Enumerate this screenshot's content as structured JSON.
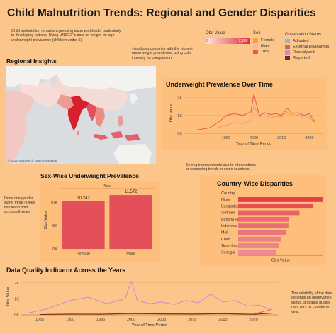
{
  "dashboard": {
    "title": "Child Malnutrition Trends: Regional and Gender Disparities",
    "intro": "Child malnutrition remains a pressing issue worldwide, particularly in developing nations. Using UNICEF's data on weight-for-age underweight prevalence (children under 5)",
    "map_note": "visualizing countries with the highest underweight prevalence, using color intensity for comparison.",
    "trend_note": "Seeing improvements due to interventions or worsening trends in some countries",
    "gender_note": "Does one gender suffer more? Does this trend hold across all years",
    "quality_note": "The reliability of the data depends on observation status, and data quality may vary by country or year."
  },
  "legends": {
    "obs_value": {
      "title": "Obs Value",
      "min": "0",
      "max": "2,285",
      "gradient": [
        "#fde7e1",
        "#e03040"
      ]
    },
    "sex": {
      "title": "Sex",
      "items": [
        {
          "label": "Female",
          "color": "#f2a23a"
        },
        {
          "label": "Male",
          "color": "#f7b3a6"
        },
        {
          "label": "Total",
          "color": "#e45a52"
        }
      ]
    },
    "observation_status": {
      "title": "Observation Status",
      "items": [
        {
          "label": "Adjusted",
          "color": "#8fb7d9"
        },
        {
          "label": "External Reanalysis",
          "color": "#d8683a"
        },
        {
          "label": "Reanalysed",
          "color": "#c78bd4"
        },
        {
          "label": "Reported",
          "color": "#7a2a10"
        }
      ]
    }
  },
  "regional": {
    "title": "Regional Insights",
    "attribution": "© 2025 Mapbox © OpenStreetMap"
  },
  "chart_data": [
    {
      "id": "underweight_over_time",
      "type": "line",
      "title": "Underweight Prevalence Over Time",
      "xlabel": "Year of Time Period",
      "ylabel": "Obs Value",
      "xlim": [
        1975,
        2025
      ],
      "ylim": [
        0,
        2300
      ],
      "xticks": [
        1990,
        2000,
        2010,
        2020
      ],
      "yticks": [
        0,
        1000,
        2000
      ],
      "ytick_labels": [
        "0K",
        "1K",
        "2K"
      ],
      "series": [
        {
          "name": "Female",
          "color": "#f2a23a",
          "x": [
            1987,
            1990,
            1993,
            1996,
            1999,
            2000,
            2002,
            2004,
            2006,
            2008,
            2010,
            2012,
            2014,
            2016,
            2018,
            2020,
            2022
          ],
          "y": [
            300,
            450,
            600,
            550,
            700,
            1550,
            900,
            1000,
            850,
            950,
            900,
            1200,
            950,
            1050,
            850,
            900,
            600
          ]
        },
        {
          "name": "Male",
          "color": "#f7b3a6",
          "x": [
            1987,
            1990,
            1993,
            1996,
            1999,
            2000,
            2002,
            2004,
            2006,
            2008,
            2010,
            2012,
            2014,
            2016,
            2018,
            2020,
            2022
          ],
          "y": [
            350,
            500,
            650,
            600,
            750,
            1650,
            950,
            1050,
            900,
            1000,
            950,
            1250,
            1000,
            1100,
            900,
            950,
            650
          ]
        },
        {
          "name": "Total",
          "color": "#e45a52",
          "x": [
            1980,
            1984,
            1988,
            1990,
            1993,
            1996,
            1999,
            2000,
            2002,
            2004,
            2006,
            2008,
            2010,
            2012,
            2014,
            2016,
            2018,
            2020,
            2022
          ],
          "y": [
            200,
            300,
            700,
            1000,
            1100,
            1000,
            1200,
            2200,
            1000,
            1150,
            1050,
            1100,
            1000,
            1400,
            1100,
            1150,
            1000,
            1100,
            650
          ]
        }
      ]
    },
    {
      "id": "sex_wise",
      "type": "bar",
      "title": "Sex-Wise Underweight Prevalence",
      "header": "Sex",
      "ylabel": "Obs Value",
      "categories": [
        "Female",
        "Male"
      ],
      "values": [
        10242,
        11572
      ],
      "value_labels": [
        "10,242",
        "11,572"
      ],
      "ylim": [
        0,
        12500
      ],
      "yticks": [
        0,
        5000,
        10000
      ],
      "ytick_labels": [
        "0K",
        "5K",
        "10K"
      ],
      "color": "#e4505a"
    },
    {
      "id": "country_wise",
      "type": "bar",
      "orientation": "horizontal",
      "title": "Country-Wise Disparities",
      "header": "Country",
      "xlabel": "Obs Value",
      "categories": [
        "Niger",
        "Bangladesh",
        "Vietnam",
        "Burkina Faso",
        "Indonesia",
        "Mali",
        "Chad",
        "Timor-Leste",
        "Senegal"
      ],
      "values": [
        1000,
        880,
        720,
        600,
        590,
        565,
        505,
        480,
        450
      ],
      "xlim": [
        0,
        1000
      ],
      "colors": [
        "#e23f48",
        "#e55058",
        "#e86068",
        "#ea6b72",
        "#eb6e75",
        "#ec7379",
        "#ee7e84",
        "#ef8389",
        "#f08a8f"
      ]
    },
    {
      "id": "data_quality",
      "type": "line",
      "title": "Data Quality Indicator Across the Years",
      "xlabel": "Year of Time Period",
      "ylabel": "Obs Value",
      "xlim": [
        1982,
        2024
      ],
      "ylim": [
        0,
        2300
      ],
      "xticks": [
        1985,
        1990,
        1995,
        2000,
        2005,
        2010,
        2015,
        2020
      ],
      "yticks": [
        0,
        1000,
        2000
      ],
      "ytick_labels": [
        "0K",
        "1K",
        "2K"
      ],
      "series": [
        {
          "name": "Adjusted",
          "color": "#8fb7d9",
          "x": [
            1990,
            1995,
            2000,
            2005,
            2010,
            2015,
            2020
          ],
          "y": [
            30,
            60,
            80,
            60,
            90,
            70,
            50
          ]
        },
        {
          "name": "External Reanalysis",
          "color": "#d8683a",
          "x": [
            1985,
            1990,
            1995,
            2000,
            2005,
            2010,
            2015,
            2020,
            2023
          ],
          "y": [
            20,
            30,
            40,
            80,
            60,
            50,
            70,
            40,
            350
          ]
        },
        {
          "name": "Reanalysed",
          "color": "#c78bd4",
          "x": [
            1983,
            1986,
            1990,
            1993,
            1996,
            1999,
            2000,
            2001,
            2003,
            2005,
            2007,
            2009,
            2011,
            2013,
            2015,
            2017,
            2019,
            2021,
            2023
          ],
          "y": [
            100,
            350,
            900,
            1100,
            700,
            1000,
            2100,
            900,
            700,
            800,
            650,
            900,
            750,
            1300,
            800,
            900,
            550,
            600,
            300
          ]
        },
        {
          "name": "Reported",
          "color": "#7a2a10",
          "x": [
            1985,
            1990,
            1995,
            2000,
            2005,
            2010,
            2015,
            2020,
            2023
          ],
          "y": [
            20,
            50,
            40,
            90,
            60,
            50,
            80,
            30,
            100
          ]
        }
      ]
    }
  ]
}
